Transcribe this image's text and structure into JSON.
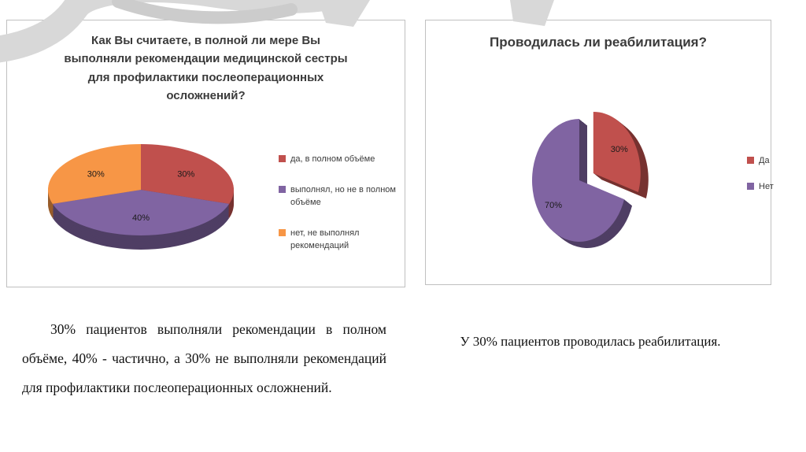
{
  "slide": {
    "background": "#ffffff",
    "decor_color": "#d8d8d8",
    "decor_color_2": "#cccccc"
  },
  "captions": {
    "left": "30% пациентов выполняли рекомендации в полном объёме, 40% - частично, а 30% не выполняли рекомендаций для профилактики послеоперационных осложнений.",
    "right": "У 30% пациентов проводилась реабилитация."
  },
  "chart_data": [
    {
      "type": "pie",
      "style": "3d",
      "title": "Как Вы считаете, в полной ли мере Вы выполняли рекомендации медицинской сестры для профилактики послеоперационных осложнений?",
      "labels": [
        "да, в полном объёме",
        "выполнял, но не в полном объёме",
        "нет, не выполнял рекомендаций"
      ],
      "values": [
        30,
        40,
        30
      ],
      "data_labels": [
        "30%",
        "40%",
        "30%"
      ],
      "colors": [
        "#c0504d",
        "#8064a2",
        "#f79646"
      ],
      "legend_position": "right"
    },
    {
      "type": "pie",
      "style": "3d-exploded",
      "title": "Проводилась ли реабилитация?",
      "labels": [
        "Да",
        "Нет"
      ],
      "values": [
        30,
        70
      ],
      "data_labels": [
        "30%",
        "70%"
      ],
      "colors": [
        "#c0504d",
        "#8064a2"
      ],
      "legend_position": "right",
      "exploded_label": "Да"
    }
  ]
}
